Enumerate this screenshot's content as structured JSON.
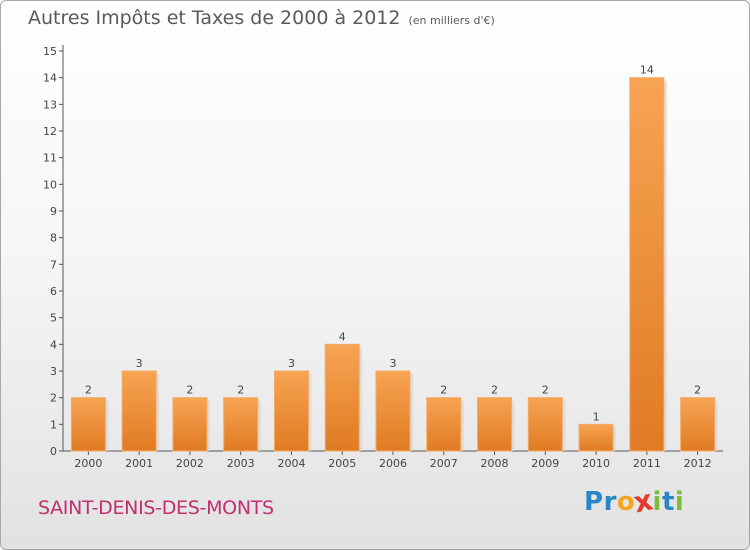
{
  "title": "Autres Impôts et Taxes de 2000 à 2012",
  "unit": "(en milliers d'€)",
  "commune": "SAINT-DENIS-DES-MONTS",
  "logo": {
    "letters": [
      "P",
      "r",
      "o",
      "x",
      "i",
      "t",
      "i"
    ],
    "colors": [
      "#2a86c8",
      "#2a86c8",
      "#f5a623",
      "#e23a2e",
      "#7bbd3a",
      "#2a86c8",
      "#7bbd3a"
    ]
  },
  "chart_data": {
    "type": "bar",
    "title": "Autres Impôts et Taxes de 2000 à 2012",
    "categories": [
      "2000",
      "2001",
      "2002",
      "2003",
      "2004",
      "2005",
      "2006",
      "2007",
      "2008",
      "2009",
      "2010",
      "2011",
      "2012"
    ],
    "values": [
      2,
      3,
      2,
      2,
      3,
      4,
      3,
      2,
      2,
      2,
      1,
      14,
      2
    ],
    "value_labels": [
      "2",
      "3",
      "2",
      "2",
      "3",
      "4",
      "3",
      "2",
      "2",
      "2",
      "1",
      "14",
      "2"
    ],
    "ylim": [
      0,
      15
    ],
    "yticks": [
      0,
      1,
      2,
      3,
      4,
      5,
      6,
      7,
      8,
      9,
      10,
      11,
      12,
      13,
      14,
      15
    ],
    "ytick_labels": [
      "0",
      "1",
      "2",
      "3",
      "4",
      "5",
      "6",
      "7",
      "8",
      "9",
      "10",
      "11",
      "12",
      "13",
      "14",
      "15"
    ],
    "bar_color": "#f0903a",
    "grid": false
  }
}
